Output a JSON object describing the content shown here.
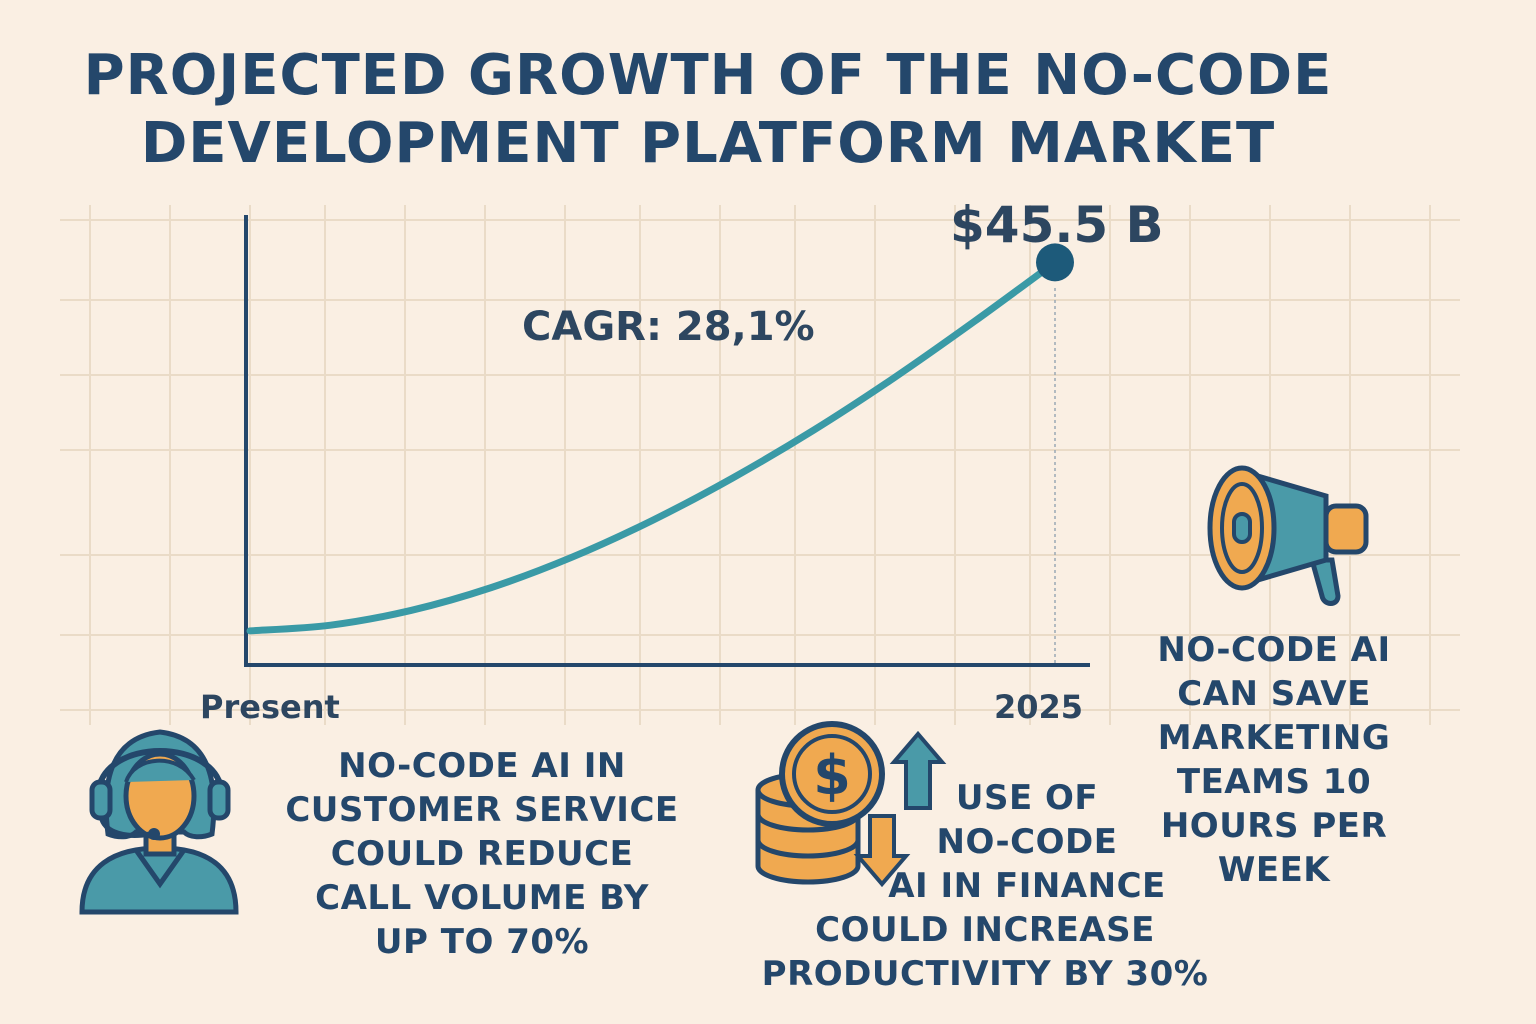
{
  "title_lines": [
    "PROJECTED GROWTH OF THE NO-CODE",
    "DEVELOPMENT PLATFORM MARKET"
  ],
  "chart_data": {
    "type": "line",
    "x_labels": [
      "Present",
      "2025"
    ],
    "end_value_label": "$45.5 B",
    "annotation": "CAGR: 28,1%",
    "series": [
      {
        "x": [
          0,
          0.1,
          0.2,
          0.3,
          0.4,
          0.5,
          0.6,
          0.7,
          0.8,
          0.9,
          1.0
        ],
        "y": [
          0.5,
          1.2,
          3.0,
          5.8,
          9.5,
          14.0,
          19.2,
          25.0,
          31.4,
          38.3,
          45.5
        ]
      }
    ],
    "ylim": [
      0,
      58
    ],
    "grid": true,
    "line_color": "#3a9aa6",
    "point_color": "#1d5a7a"
  },
  "stats": {
    "customer_service": "NO-CODE AI IN\nCUSTOMER SERVICE\nCOULD REDUCE\nCALL VOLUME BY\nUP TO 70%",
    "finance_top": "USE OF\nNO-CODE\nAI IN FINANCE",
    "finance_bottom": "COULD INCREASE\nPRODUCTIVITY BY 30%",
    "marketing": "NO-CODE AI\nCAN SAVE\nMARKETING\nTEAMS 10\nHOURS PER\nWEEK"
  },
  "icons": {
    "agent": "headset-agent-icon",
    "coins": "coins-dollar-icon",
    "megaphone": "megaphone-icon"
  },
  "colors": {
    "background": "#faefe3",
    "navy": "#24476b",
    "teal": "#4a9aa8",
    "orange": "#f0a950"
  }
}
